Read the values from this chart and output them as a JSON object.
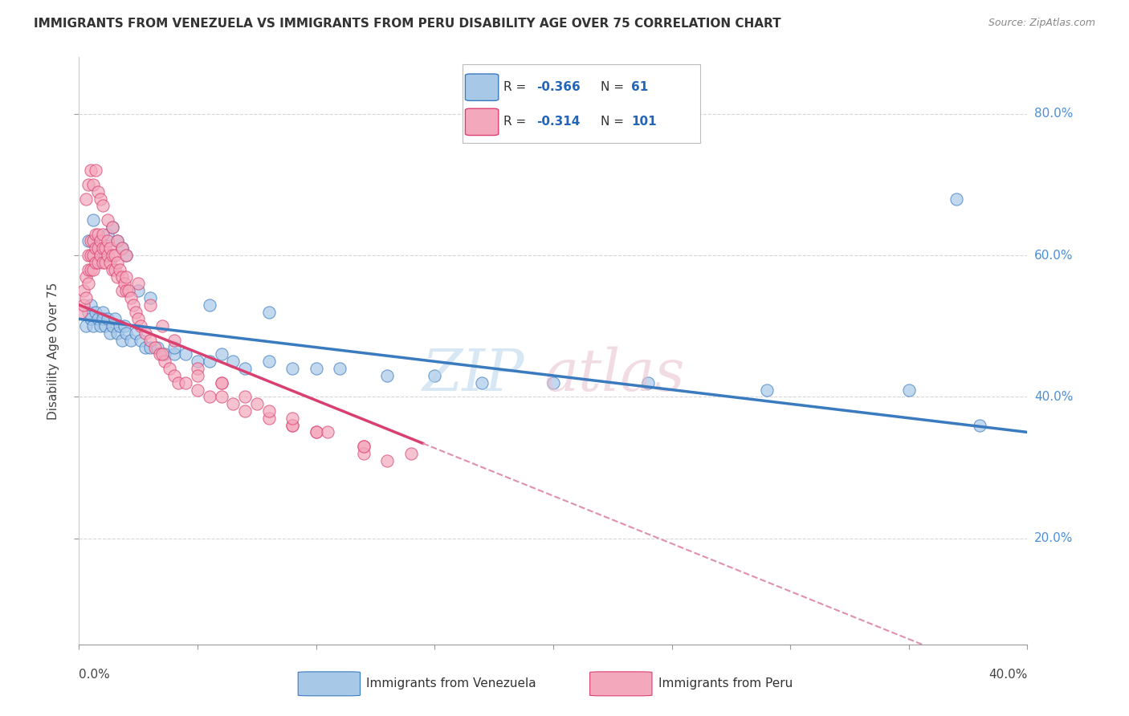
{
  "title": "IMMIGRANTS FROM VENEZUELA VS IMMIGRANTS FROM PERU DISABILITY AGE OVER 75 CORRELATION CHART",
  "source": "Source: ZipAtlas.com",
  "ylabel": "Disability Age Over 75",
  "right_yticks": [
    0.2,
    0.4,
    0.6,
    0.8
  ],
  "right_yticklabels": [
    "20.0%",
    "40.0%",
    "60.0%",
    "80.0%"
  ],
  "xlim": [
    0.0,
    0.4
  ],
  "ylim": [
    0.05,
    0.88
  ],
  "color_venezuela": "#a8c8e8",
  "color_peru": "#f4a8bc",
  "color_trend_venezuela": "#3a7abf",
  "color_trend_peru": "#d94070",
  "color_trend_dashed": "#e090a8",
  "venezuela_x": [
    0.003,
    0.004,
    0.005,
    0.005,
    0.006,
    0.007,
    0.008,
    0.009,
    0.01,
    0.01,
    0.011,
    0.012,
    0.013,
    0.014,
    0.015,
    0.016,
    0.017,
    0.018,
    0.019,
    0.02,
    0.022,
    0.024,
    0.026,
    0.028,
    0.03,
    0.033,
    0.036,
    0.04,
    0.045,
    0.05,
    0.055,
    0.06,
    0.065,
    0.07,
    0.08,
    0.09,
    0.1,
    0.11,
    0.13,
    0.15,
    0.17,
    0.2,
    0.24,
    0.29,
    0.35,
    0.38,
    0.004,
    0.006,
    0.008,
    0.01,
    0.012,
    0.014,
    0.016,
    0.018,
    0.02,
    0.025,
    0.03,
    0.04,
    0.055,
    0.08,
    0.37
  ],
  "venezuela_y": [
    0.5,
    0.52,
    0.53,
    0.51,
    0.5,
    0.52,
    0.51,
    0.5,
    0.52,
    0.51,
    0.5,
    0.51,
    0.49,
    0.5,
    0.51,
    0.49,
    0.5,
    0.48,
    0.5,
    0.49,
    0.48,
    0.49,
    0.48,
    0.47,
    0.47,
    0.47,
    0.46,
    0.46,
    0.46,
    0.45,
    0.45,
    0.46,
    0.45,
    0.44,
    0.45,
    0.44,
    0.44,
    0.44,
    0.43,
    0.43,
    0.42,
    0.42,
    0.42,
    0.41,
    0.41,
    0.36,
    0.62,
    0.65,
    0.61,
    0.6,
    0.63,
    0.64,
    0.62,
    0.61,
    0.6,
    0.55,
    0.54,
    0.47,
    0.53,
    0.52,
    0.68
  ],
  "peru_x": [
    0.001,
    0.002,
    0.002,
    0.003,
    0.003,
    0.004,
    0.004,
    0.004,
    0.005,
    0.005,
    0.005,
    0.006,
    0.006,
    0.006,
    0.007,
    0.007,
    0.007,
    0.008,
    0.008,
    0.008,
    0.009,
    0.009,
    0.01,
    0.01,
    0.01,
    0.011,
    0.011,
    0.012,
    0.012,
    0.013,
    0.013,
    0.014,
    0.014,
    0.015,
    0.015,
    0.016,
    0.016,
    0.017,
    0.018,
    0.018,
    0.019,
    0.02,
    0.02,
    0.021,
    0.022,
    0.023,
    0.024,
    0.025,
    0.026,
    0.028,
    0.03,
    0.032,
    0.034,
    0.036,
    0.038,
    0.04,
    0.042,
    0.045,
    0.05,
    0.055,
    0.06,
    0.065,
    0.07,
    0.08,
    0.09,
    0.1,
    0.12,
    0.14,
    0.003,
    0.004,
    0.005,
    0.006,
    0.007,
    0.008,
    0.009,
    0.01,
    0.012,
    0.014,
    0.016,
    0.018,
    0.02,
    0.025,
    0.03,
    0.035,
    0.04,
    0.05,
    0.06,
    0.07,
    0.08,
    0.09,
    0.1,
    0.12,
    0.13,
    0.035,
    0.05,
    0.06,
    0.075,
    0.09,
    0.105,
    0.12
  ],
  "peru_y": [
    0.52,
    0.55,
    0.53,
    0.57,
    0.54,
    0.6,
    0.58,
    0.56,
    0.6,
    0.62,
    0.58,
    0.62,
    0.6,
    0.58,
    0.63,
    0.61,
    0.59,
    0.63,
    0.61,
    0.59,
    0.62,
    0.6,
    0.63,
    0.61,
    0.59,
    0.61,
    0.59,
    0.62,
    0.6,
    0.61,
    0.59,
    0.6,
    0.58,
    0.6,
    0.58,
    0.59,
    0.57,
    0.58,
    0.57,
    0.55,
    0.56,
    0.55,
    0.57,
    0.55,
    0.54,
    0.53,
    0.52,
    0.51,
    0.5,
    0.49,
    0.48,
    0.47,
    0.46,
    0.45,
    0.44,
    0.43,
    0.42,
    0.42,
    0.41,
    0.4,
    0.4,
    0.39,
    0.38,
    0.37,
    0.36,
    0.35,
    0.33,
    0.32,
    0.68,
    0.7,
    0.72,
    0.7,
    0.72,
    0.69,
    0.68,
    0.67,
    0.65,
    0.64,
    0.62,
    0.61,
    0.6,
    0.56,
    0.53,
    0.5,
    0.48,
    0.44,
    0.42,
    0.4,
    0.38,
    0.36,
    0.35,
    0.32,
    0.31,
    0.46,
    0.43,
    0.42,
    0.39,
    0.37,
    0.35,
    0.33
  ],
  "vz_intercept": 0.51,
  "vz_slope": -0.4,
  "pz_intercept": 0.53,
  "pz_slope": -1.35
}
